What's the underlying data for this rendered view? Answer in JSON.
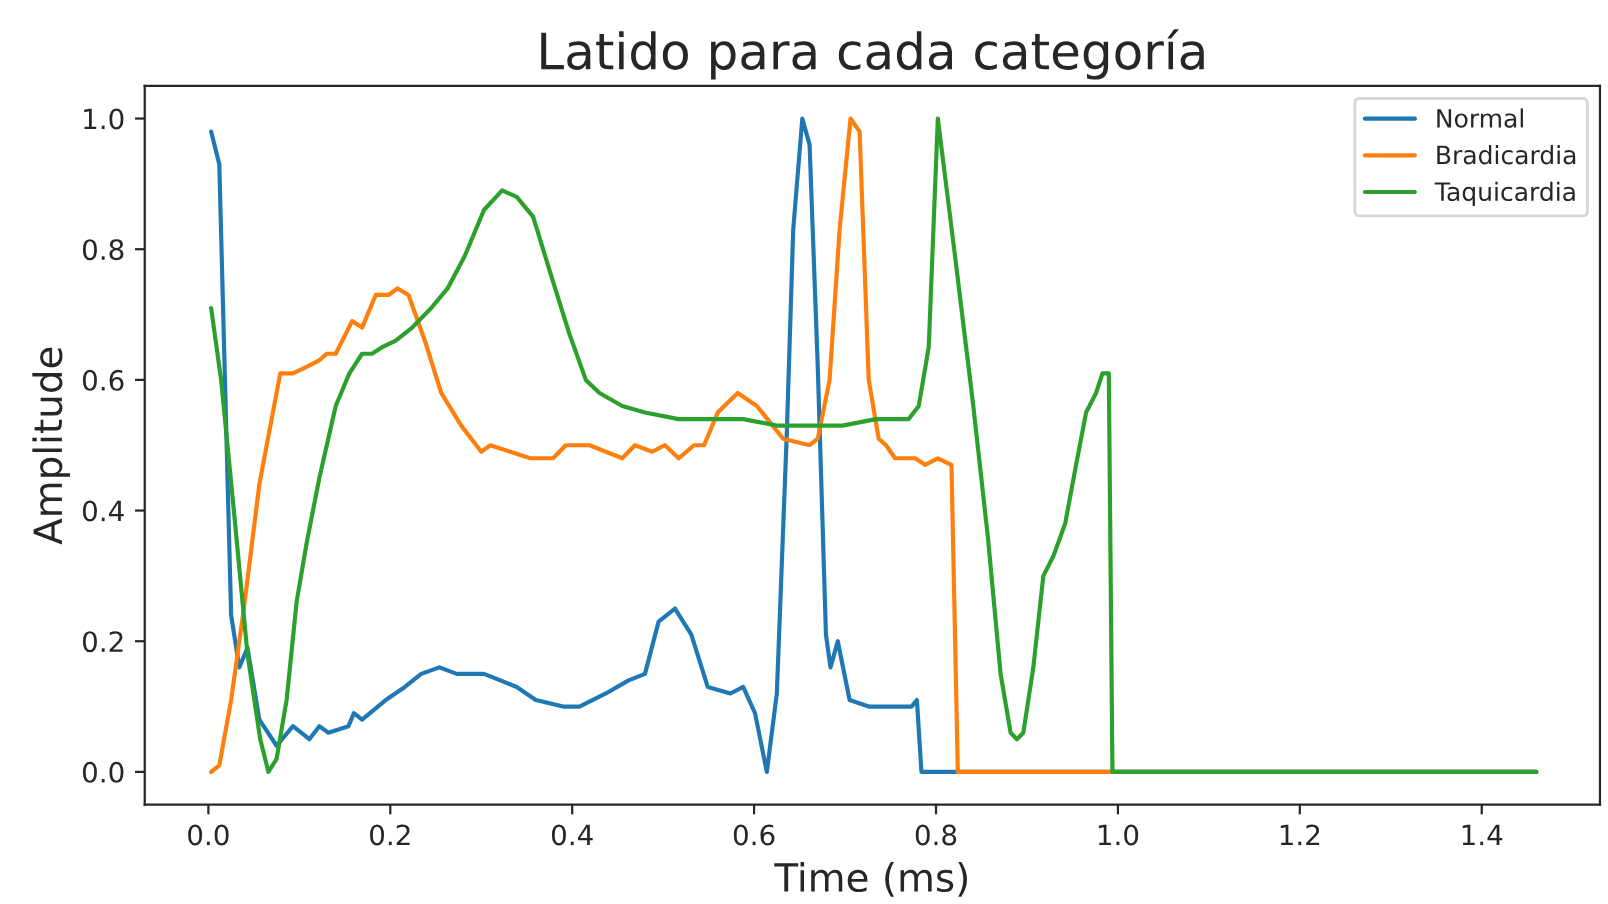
{
  "chart_data": {
    "type": "line",
    "title": "Latido para cada categoría",
    "xlabel": "Time (ms)",
    "ylabel": "Amplitude",
    "xlim": [
      -0.07,
      1.53
    ],
    "ylim": [
      -0.05,
      1.05
    ],
    "xticks": [
      {
        "value": 0,
        "label": "0.0"
      },
      0.2,
      0.4,
      0.6,
      0.8,
      {
        "value": 1,
        "label": "1.0"
      },
      1.2,
      1.4
    ],
    "yticks": [
      {
        "value": 0,
        "label": "0.0"
      },
      0.2,
      0.4,
      0.6,
      0.8,
      {
        "value": 1,
        "label": "1.0"
      }
    ],
    "grid": false,
    "legend": "top right",
    "marker": "none",
    "line_style": "solid",
    "series": [
      {
        "name": "Normal",
        "color": "#1f77b4",
        "x": [
          0.003,
          0.012,
          0.025,
          0.034,
          0.043,
          0.056,
          0.075,
          0.093,
          0.111,
          0.122,
          0.132,
          0.154,
          0.16,
          0.169,
          0.195,
          0.216,
          0.234,
          0.254,
          0.273,
          0.303,
          0.339,
          0.36,
          0.39,
          0.408,
          0.437,
          0.462,
          0.48,
          0.495,
          0.513,
          0.531,
          0.549,
          0.574,
          0.588,
          0.601,
          0.614,
          0.625,
          0.636,
          0.643,
          0.653,
          0.661,
          0.67,
          0.679,
          0.684,
          0.692,
          0.705,
          0.726,
          0.755,
          0.773,
          0.779,
          0.784,
          1.46
        ],
        "values": [
          0.98,
          0.93,
          0.24,
          0.16,
          0.19,
          0.08,
          0.04,
          0.07,
          0.05,
          0.07,
          0.06,
          0.07,
          0.09,
          0.08,
          0.11,
          0.13,
          0.15,
          0.16,
          0.15,
          0.15,
          0.13,
          0.11,
          0.1,
          0.1,
          0.12,
          0.14,
          0.15,
          0.23,
          0.25,
          0.21,
          0.13,
          0.12,
          0.13,
          0.09,
          0.0,
          0.12,
          0.52,
          0.83,
          1.0,
          0.96,
          0.62,
          0.21,
          0.16,
          0.2,
          0.11,
          0.1,
          0.1,
          0.1,
          0.11,
          0.0,
          0.0
        ]
      },
      {
        "name": "Bradicardia",
        "color": "#ff7f0e",
        "x": [
          0.003,
          0.012,
          0.025,
          0.039,
          0.056,
          0.079,
          0.093,
          0.108,
          0.122,
          0.13,
          0.14,
          0.158,
          0.169,
          0.184,
          0.198,
          0.208,
          0.22,
          0.238,
          0.256,
          0.278,
          0.3,
          0.31,
          0.332,
          0.354,
          0.379,
          0.393,
          0.419,
          0.455,
          0.469,
          0.488,
          0.502,
          0.517,
          0.534,
          0.545,
          0.56,
          0.582,
          0.603,
          0.632,
          0.661,
          0.67,
          0.683,
          0.694,
          0.706,
          0.716,
          0.726,
          0.737,
          0.745,
          0.755,
          0.777,
          0.788,
          0.802,
          0.817,
          0.824,
          1.46
        ],
        "values": [
          0.0,
          0.01,
          0.11,
          0.25,
          0.44,
          0.61,
          0.61,
          0.62,
          0.63,
          0.64,
          0.64,
          0.69,
          0.68,
          0.73,
          0.73,
          0.74,
          0.73,
          0.66,
          0.58,
          0.53,
          0.49,
          0.5,
          0.49,
          0.48,
          0.48,
          0.5,
          0.5,
          0.48,
          0.5,
          0.49,
          0.5,
          0.48,
          0.5,
          0.5,
          0.55,
          0.58,
          0.56,
          0.51,
          0.5,
          0.51,
          0.6,
          0.83,
          1.0,
          0.98,
          0.6,
          0.51,
          0.5,
          0.48,
          0.48,
          0.47,
          0.48,
          0.47,
          0.0,
          0.0
        ]
      },
      {
        "name": "Taquicardia",
        "color": "#2ca02c",
        "x": [
          0.003,
          0.014,
          0.028,
          0.043,
          0.057,
          0.066,
          0.075,
          0.086,
          0.097,
          0.108,
          0.122,
          0.14,
          0.155,
          0.169,
          0.18,
          0.191,
          0.206,
          0.224,
          0.245,
          0.263,
          0.282,
          0.303,
          0.323,
          0.339,
          0.357,
          0.379,
          0.397,
          0.415,
          0.43,
          0.455,
          0.48,
          0.517,
          0.553,
          0.588,
          0.625,
          0.661,
          0.697,
          0.734,
          0.77,
          0.781,
          0.792,
          0.802,
          0.82,
          0.841,
          0.857,
          0.871,
          0.882,
          0.889,
          0.896,
          0.907,
          0.918,
          0.929,
          0.942,
          0.954,
          0.965,
          0.976,
          0.983,
          0.99,
          0.994,
          1.46
        ],
        "values": [
          0.71,
          0.6,
          0.4,
          0.18,
          0.05,
          0.0,
          0.02,
          0.11,
          0.26,
          0.35,
          0.45,
          0.56,
          0.61,
          0.64,
          0.64,
          0.65,
          0.66,
          0.68,
          0.71,
          0.74,
          0.79,
          0.86,
          0.89,
          0.88,
          0.85,
          0.75,
          0.67,
          0.6,
          0.58,
          0.56,
          0.55,
          0.54,
          0.54,
          0.54,
          0.53,
          0.53,
          0.53,
          0.54,
          0.54,
          0.56,
          0.65,
          1.0,
          0.8,
          0.56,
          0.36,
          0.15,
          0.06,
          0.05,
          0.06,
          0.16,
          0.3,
          0.33,
          0.38,
          0.47,
          0.55,
          0.58,
          0.61,
          0.61,
          0.0,
          0.0
        ]
      }
    ]
  }
}
